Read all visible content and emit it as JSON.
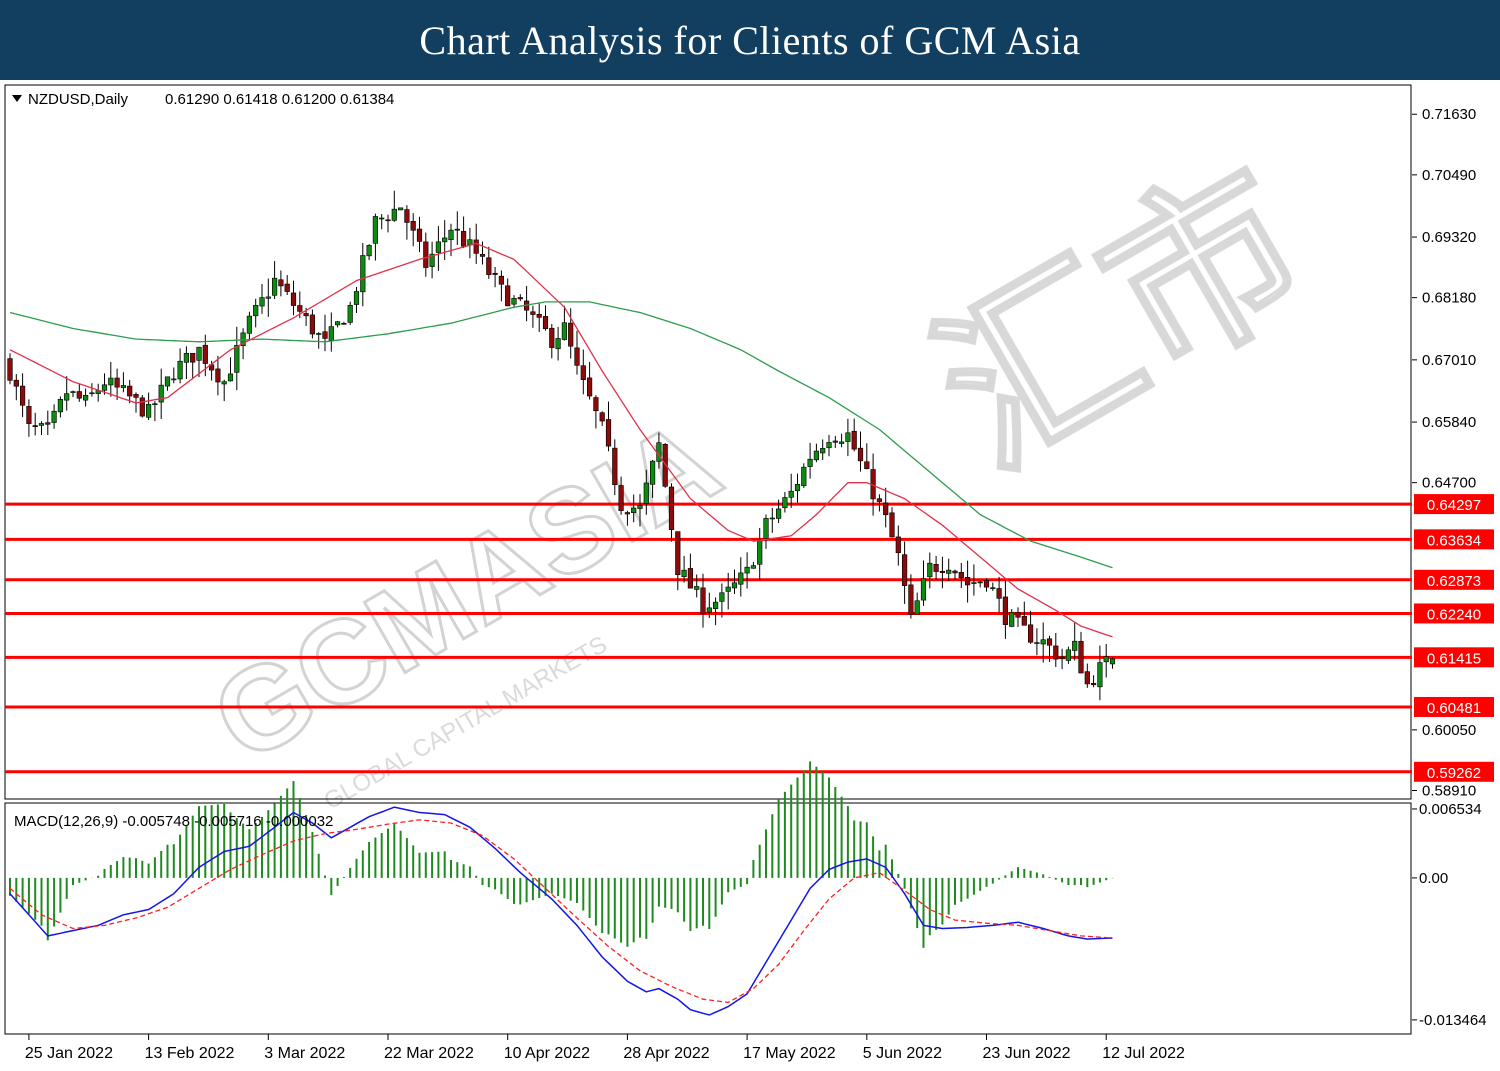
{
  "banner": {
    "title": "Chart Analysis for Clients of GCM Asia"
  },
  "watermark": {
    "logo_text": "GCMASIA",
    "tagline": "GLOBAL CAPITAL MARKETS",
    "chinese_text": "汇市"
  },
  "colors": {
    "banner_bg": "#123f60",
    "bull_candle": "#0d8a10",
    "bear_candle": "#8b0b0b",
    "ma_fast": "#e0314a",
    "ma_slow": "#2e9c4e",
    "level_line": "#ff0000",
    "level_label_bg": "#ff0000",
    "macd_line": "#1515e6",
    "signal_line": "#ff2020",
    "histogram": "#1f8a1f"
  },
  "chart_data": [
    {
      "type": "candlestick",
      "symbol_header": "NZDUSD,Daily",
      "ohlc_header": "0.61290 0.61418 0.61200 0.61384",
      "last_bar": {
        "open": 0.6129,
        "high": 0.61418,
        "low": 0.612,
        "close": 0.61384
      },
      "ylim": [
        0.5875,
        0.7218
      ],
      "y_ticks": [
        "0.71630",
        "0.70490",
        "0.69320",
        "0.68180",
        "0.67010",
        "0.65840",
        "0.64700",
        "0.60050",
        "0.58910"
      ],
      "x_ticks": [
        "25 Jan 2022",
        "13 Feb 2022",
        "3 Mar 2022",
        "22 Mar 2022",
        "10 Apr 2022",
        "28 Apr 2022",
        "17 May 2022",
        "5 Jun 2022",
        "23 Jun 2022",
        "12 Jul 2022"
      ],
      "x_tick_bar_index": [
        3,
        22,
        41,
        60,
        79,
        98,
        117,
        136,
        155,
        174
      ],
      "horizontal_levels": [
        "0.64297",
        "0.63634",
        "0.62873",
        "0.62240",
        "0.61415",
        "0.60481",
        "0.59262"
      ],
      "close_path": [
        [
          0,
          0.668
        ],
        [
          3,
          0.657
        ],
        [
          6,
          0.6565
        ],
        [
          9,
          0.664
        ],
        [
          12,
          0.662
        ],
        [
          15,
          0.666
        ],
        [
          19,
          0.663
        ],
        [
          22,
          0.66
        ],
        [
          26,
          0.668
        ],
        [
          30,
          0.672
        ],
        [
          34,
          0.666
        ],
        [
          38,
          0.677
        ],
        [
          42,
          0.685
        ],
        [
          46,
          0.679
        ],
        [
          50,
          0.673
        ],
        [
          54,
          0.68
        ],
        [
          58,
          0.696
        ],
        [
          62,
          0.699
        ],
        [
          66,
          0.688
        ],
        [
          70,
          0.695
        ],
        [
          74,
          0.69
        ],
        [
          78,
          0.683
        ],
        [
          82,
          0.679
        ],
        [
          86,
          0.674
        ],
        [
          88,
          0.676
        ],
        [
          90,
          0.668
        ],
        [
          94,
          0.657
        ],
        [
          97,
          0.643
        ],
        [
          100,
          0.642
        ],
        [
          103,
          0.654
        ],
        [
          106,
          0.631
        ],
        [
          110,
          0.624
        ],
        [
          113,
          0.625
        ],
        [
          117,
          0.63
        ],
        [
          120,
          0.639
        ],
        [
          124,
          0.645
        ],
        [
          127,
          0.652
        ],
        [
          130,
          0.656
        ],
        [
          133,
          0.656
        ],
        [
          136,
          0.648
        ],
        [
          139,
          0.64
        ],
        [
          141,
          0.633
        ],
        [
          143,
          0.621
        ],
        [
          146,
          0.631
        ],
        [
          149,
          0.632
        ],
        [
          152,
          0.628
        ],
        [
          155,
          0.629
        ],
        [
          158,
          0.622
        ],
        [
          161,
          0.619
        ],
        [
          164,
          0.617
        ],
        [
          167,
          0.614
        ],
        [
          169,
          0.616
        ],
        [
          171,
          0.609
        ],
        [
          173,
          0.612
        ],
        [
          175,
          0.6138
        ]
      ],
      "ma_fast_path": [
        [
          0,
          0.672
        ],
        [
          10,
          0.666
        ],
        [
          20,
          0.662
        ],
        [
          25,
          0.663
        ],
        [
          35,
          0.672
        ],
        [
          45,
          0.678
        ],
        [
          55,
          0.685
        ],
        [
          65,
          0.689
        ],
        [
          74,
          0.692
        ],
        [
          80,
          0.689
        ],
        [
          88,
          0.68
        ],
        [
          94,
          0.668
        ],
        [
          100,
          0.657
        ],
        [
          108,
          0.644
        ],
        [
          114,
          0.638
        ],
        [
          118,
          0.636
        ],
        [
          124,
          0.637
        ],
        [
          128,
          0.641
        ],
        [
          133,
          0.647
        ],
        [
          136,
          0.647
        ],
        [
          142,
          0.644
        ],
        [
          148,
          0.639
        ],
        [
          154,
          0.633
        ],
        [
          160,
          0.627
        ],
        [
          166,
          0.623
        ],
        [
          170,
          0.62
        ],
        [
          175,
          0.618
        ]
      ],
      "ma_slow_path": [
        [
          0,
          0.679
        ],
        [
          10,
          0.676
        ],
        [
          20,
          0.674
        ],
        [
          30,
          0.6735
        ],
        [
          40,
          0.674
        ],
        [
          50,
          0.6735
        ],
        [
          60,
          0.675
        ],
        [
          70,
          0.677
        ],
        [
          80,
          0.68
        ],
        [
          85,
          0.681
        ],
        [
          92,
          0.681
        ],
        [
          100,
          0.679
        ],
        [
          108,
          0.676
        ],
        [
          116,
          0.672
        ],
        [
          122,
          0.668
        ],
        [
          130,
          0.663
        ],
        [
          138,
          0.657
        ],
        [
          146,
          0.649
        ],
        [
          154,
          0.641
        ],
        [
          162,
          0.636
        ],
        [
          170,
          0.633
        ],
        [
          175,
          0.631
        ]
      ]
    },
    {
      "type": "macd",
      "header": "MACD(12,26,9) -0.005748 -0.005716 -0.000032",
      "params": [
        12,
        26,
        9
      ],
      "last_values": {
        "macd": -0.005748,
        "signal": -0.005716,
        "histogram": -3.2e-05
      },
      "ylim": [
        -0.0148,
        0.0071
      ],
      "y_ticks": [
        "0.006534",
        "0.00",
        "-0.013464"
      ],
      "macd_path": [
        [
          0,
          -0.0015
        ],
        [
          3,
          -0.0035
        ],
        [
          6,
          -0.0055
        ],
        [
          10,
          -0.005
        ],
        [
          14,
          -0.0045
        ],
        [
          18,
          -0.0035
        ],
        [
          22,
          -0.003
        ],
        [
          26,
          -0.0015
        ],
        [
          30,
          0.001
        ],
        [
          34,
          0.0025
        ],
        [
          38,
          0.003
        ],
        [
          42,
          0.0048
        ],
        [
          45,
          0.0062
        ],
        [
          48,
          0.0052
        ],
        [
          51,
          0.0038
        ],
        [
          54,
          0.0048
        ],
        [
          57,
          0.0058
        ],
        [
          61,
          0.0067
        ],
        [
          65,
          0.0062
        ],
        [
          69,
          0.006
        ],
        [
          73,
          0.0048
        ],
        [
          77,
          0.0028
        ],
        [
          81,
          0.0005
        ],
        [
          86,
          -0.002
        ],
        [
          90,
          -0.0045
        ],
        [
          94,
          -0.0075
        ],
        [
          98,
          -0.0098
        ],
        [
          101,
          -0.0108
        ],
        [
          103,
          -0.0105
        ],
        [
          106,
          -0.0115
        ],
        [
          108,
          -0.0125
        ],
        [
          111,
          -0.013
        ],
        [
          114,
          -0.0122
        ],
        [
          117,
          -0.011
        ],
        [
          120,
          -0.008
        ],
        [
          124,
          -0.004
        ],
        [
          127,
          -0.001
        ],
        [
          130,
          0.0008
        ],
        [
          133,
          0.0015
        ],
        [
          136,
          0.0018
        ],
        [
          139,
          0.001
        ],
        [
          142,
          -0.0015
        ],
        [
          145,
          -0.0045
        ],
        [
          148,
          -0.0048
        ],
        [
          152,
          -0.0047
        ],
        [
          156,
          -0.0045
        ],
        [
          160,
          -0.0042
        ],
        [
          164,
          -0.0048
        ],
        [
          168,
          -0.0055
        ],
        [
          171,
          -0.0058
        ],
        [
          175,
          -0.0057
        ]
      ],
      "signal_path": [
        [
          0,
          -0.001
        ],
        [
          5,
          -0.0035
        ],
        [
          10,
          -0.0048
        ],
        [
          15,
          -0.0045
        ],
        [
          20,
          -0.0038
        ],
        [
          25,
          -0.0028
        ],
        [
          30,
          -0.001
        ],
        [
          35,
          0.0008
        ],
        [
          40,
          0.0022
        ],
        [
          45,
          0.0035
        ],
        [
          50,
          0.0042
        ],
        [
          55,
          0.0046
        ],
        [
          60,
          0.0051
        ],
        [
          65,
          0.0055
        ],
        [
          70,
          0.0052
        ],
        [
          75,
          0.004
        ],
        [
          80,
          0.0018
        ],
        [
          85,
          -0.001
        ],
        [
          90,
          -0.0038
        ],
        [
          95,
          -0.0065
        ],
        [
          100,
          -0.0088
        ],
        [
          105,
          -0.0103
        ],
        [
          110,
          -0.0115
        ],
        [
          114,
          -0.0118
        ],
        [
          118,
          -0.0105
        ],
        [
          122,
          -0.0082
        ],
        [
          126,
          -0.005
        ],
        [
          130,
          -0.002
        ],
        [
          134,
          0.0
        ],
        [
          138,
          0.0005
        ],
        [
          142,
          -0.0012
        ],
        [
          146,
          -0.003
        ],
        [
          150,
          -0.004
        ],
        [
          155,
          -0.0043
        ],
        [
          160,
          -0.0045
        ],
        [
          165,
          -0.005
        ],
        [
          170,
          -0.0055
        ],
        [
          175,
          -0.0057
        ]
      ]
    }
  ]
}
